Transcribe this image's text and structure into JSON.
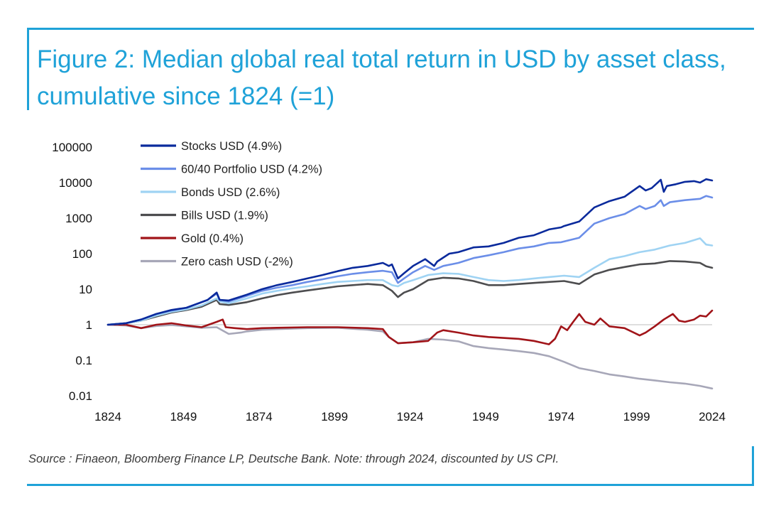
{
  "colors": {
    "accent": "#1fa2d8",
    "stocks": "#0a2a9c",
    "portfolio": "#6b8ee8",
    "bonds": "#9fd3f3",
    "bills": "#4d4d4f",
    "gold": "#a11419",
    "zero_cash": "#a7a7b8",
    "baseline": "#d4d4d4"
  },
  "title": "Figure 2: Median global real total return in USD by asset class, cumulative since 1824 (=1)",
  "source": "Source : Finaeon, Bloomberg Finance LP, Deutsche Bank. Note: through 2024, discounted by US CPI.",
  "chart_data": {
    "type": "line",
    "title": "Figure 2: Median global real total return in USD by asset class, cumulative since 1824 (=1)",
    "xlabel": "",
    "ylabel": "",
    "y_scale": "log",
    "xlim": [
      1824,
      2024
    ],
    "ylim": [
      0.01,
      100000
    ],
    "x_ticks": [
      "1824",
      "1849",
      "1874",
      "1899",
      "1924",
      "1949",
      "1974",
      "1999",
      "2024"
    ],
    "y_ticks": [
      {
        "v": 100000,
        "label": "100000"
      },
      {
        "v": 10000,
        "label": "10000"
      },
      {
        "v": 1000,
        "label": "1000"
      },
      {
        "v": 100,
        "label": "100"
      },
      {
        "v": 10,
        "label": "10"
      },
      {
        "v": 1,
        "label": "1"
      },
      {
        "v": 0.1,
        "label": "0.1"
      },
      {
        "v": 0.01,
        "label": "0.01"
      }
    ],
    "grid": false,
    "baseline": 1,
    "legend_position": "top-left",
    "series": [
      {
        "key": "stocks",
        "name": "Stocks USD (4.9%)",
        "points": [
          [
            1824,
            1
          ],
          [
            1830,
            1.1
          ],
          [
            1835,
            1.4
          ],
          [
            1840,
            2
          ],
          [
            1845,
            2.6
          ],
          [
            1850,
            3
          ],
          [
            1854,
            4
          ],
          [
            1857,
            5
          ],
          [
            1860,
            8
          ],
          [
            1861,
            5
          ],
          [
            1864,
            4.8
          ],
          [
            1870,
            7
          ],
          [
            1875,
            10
          ],
          [
            1880,
            13
          ],
          [
            1885,
            16
          ],
          [
            1890,
            20
          ],
          [
            1895,
            25
          ],
          [
            1900,
            32
          ],
          [
            1905,
            40
          ],
          [
            1910,
            45
          ],
          [
            1915,
            55
          ],
          [
            1917,
            45
          ],
          [
            1918,
            50
          ],
          [
            1920,
            20
          ],
          [
            1922,
            28
          ],
          [
            1925,
            45
          ],
          [
            1929,
            70
          ],
          [
            1932,
            45
          ],
          [
            1933,
            60
          ],
          [
            1937,
            100
          ],
          [
            1940,
            110
          ],
          [
            1945,
            150
          ],
          [
            1950,
            160
          ],
          [
            1955,
            200
          ],
          [
            1960,
            280
          ],
          [
            1965,
            330
          ],
          [
            1970,
            480
          ],
          [
            1974,
            550
          ],
          [
            1975,
            600
          ],
          [
            1980,
            800
          ],
          [
            1985,
            2000
          ],
          [
            1990,
            3000
          ],
          [
            1995,
            4000
          ],
          [
            2000,
            8000
          ],
          [
            2002,
            6000
          ],
          [
            2004,
            7000
          ],
          [
            2007,
            12000
          ],
          [
            2008,
            5500
          ],
          [
            2009,
            8000
          ],
          [
            2012,
            9000
          ],
          [
            2015,
            10500
          ],
          [
            2018,
            11000
          ],
          [
            2020,
            10000
          ],
          [
            2022,
            12500
          ],
          [
            2024,
            11500
          ]
        ]
      },
      {
        "key": "portfolio",
        "name": "60/40 Portfolio USD (4.2%)",
        "points": [
          [
            1824,
            1
          ],
          [
            1830,
            1.1
          ],
          [
            1835,
            1.4
          ],
          [
            1840,
            2
          ],
          [
            1845,
            2.5
          ],
          [
            1850,
            3
          ],
          [
            1854,
            4
          ],
          [
            1857,
            5
          ],
          [
            1860,
            7.5
          ],
          [
            1861,
            5
          ],
          [
            1864,
            4.5
          ],
          [
            1870,
            6.5
          ],
          [
            1875,
            9
          ],
          [
            1880,
            11
          ],
          [
            1885,
            13
          ],
          [
            1890,
            16
          ],
          [
            1895,
            19
          ],
          [
            1900,
            23
          ],
          [
            1905,
            27
          ],
          [
            1910,
            30
          ],
          [
            1915,
            33
          ],
          [
            1918,
            30
          ],
          [
            1920,
            15
          ],
          [
            1922,
            20
          ],
          [
            1925,
            30
          ],
          [
            1929,
            45
          ],
          [
            1932,
            35
          ],
          [
            1935,
            45
          ],
          [
            1940,
            55
          ],
          [
            1945,
            75
          ],
          [
            1950,
            90
          ],
          [
            1955,
            110
          ],
          [
            1960,
            140
          ],
          [
            1965,
            160
          ],
          [
            1970,
            200
          ],
          [
            1974,
            210
          ],
          [
            1980,
            280
          ],
          [
            1985,
            700
          ],
          [
            1990,
            1000
          ],
          [
            1995,
            1300
          ],
          [
            2000,
            2200
          ],
          [
            2002,
            1800
          ],
          [
            2005,
            2200
          ],
          [
            2007,
            3200
          ],
          [
            2008,
            2200
          ],
          [
            2010,
            2800
          ],
          [
            2015,
            3200
          ],
          [
            2020,
            3500
          ],
          [
            2022,
            4200
          ],
          [
            2024,
            3800
          ]
        ]
      },
      {
        "key": "bonds",
        "name": "Bonds USD (2.6%)",
        "points": [
          [
            1824,
            1
          ],
          [
            1830,
            1.1
          ],
          [
            1835,
            1.3
          ],
          [
            1840,
            1.8
          ],
          [
            1845,
            2.3
          ],
          [
            1850,
            2.7
          ],
          [
            1855,
            3.5
          ],
          [
            1860,
            5.5
          ],
          [
            1861,
            4.5
          ],
          [
            1864,
            4
          ],
          [
            1870,
            5.5
          ],
          [
            1875,
            7.5
          ],
          [
            1880,
            9
          ],
          [
            1885,
            10.5
          ],
          [
            1890,
            12
          ],
          [
            1895,
            14
          ],
          [
            1900,
            16
          ],
          [
            1905,
            17
          ],
          [
            1910,
            18
          ],
          [
            1915,
            18
          ],
          [
            1918,
            13
          ],
          [
            1920,
            12
          ],
          [
            1922,
            15
          ],
          [
            1925,
            18
          ],
          [
            1930,
            25
          ],
          [
            1935,
            28
          ],
          [
            1940,
            27
          ],
          [
            1945,
            22
          ],
          [
            1950,
            18
          ],
          [
            1955,
            17
          ],
          [
            1960,
            18
          ],
          [
            1965,
            20
          ],
          [
            1970,
            22
          ],
          [
            1975,
            24
          ],
          [
            1980,
            22
          ],
          [
            1985,
            40
          ],
          [
            1990,
            70
          ],
          [
            1995,
            85
          ],
          [
            2000,
            110
          ],
          [
            2005,
            130
          ],
          [
            2010,
            170
          ],
          [
            2015,
            200
          ],
          [
            2020,
            270
          ],
          [
            2022,
            180
          ],
          [
            2024,
            170
          ]
        ]
      },
      {
        "key": "bills",
        "name": "Bills USD (1.9%)",
        "points": [
          [
            1824,
            1
          ],
          [
            1830,
            1.1
          ],
          [
            1835,
            1.3
          ],
          [
            1840,
            1.7
          ],
          [
            1845,
            2.2
          ],
          [
            1850,
            2.6
          ],
          [
            1855,
            3.2
          ],
          [
            1860,
            5
          ],
          [
            1861,
            3.8
          ],
          [
            1864,
            3.6
          ],
          [
            1870,
            4.3
          ],
          [
            1875,
            5.5
          ],
          [
            1880,
            6.8
          ],
          [
            1885,
            8
          ],
          [
            1890,
            9.2
          ],
          [
            1895,
            10.5
          ],
          [
            1900,
            12
          ],
          [
            1905,
            13
          ],
          [
            1910,
            14
          ],
          [
            1915,
            13
          ],
          [
            1918,
            9
          ],
          [
            1920,
            6
          ],
          [
            1922,
            8
          ],
          [
            1925,
            10
          ],
          [
            1930,
            18
          ],
          [
            1935,
            21
          ],
          [
            1940,
            20
          ],
          [
            1945,
            17
          ],
          [
            1950,
            13
          ],
          [
            1955,
            13
          ],
          [
            1960,
            14
          ],
          [
            1965,
            15
          ],
          [
            1970,
            16
          ],
          [
            1975,
            17
          ],
          [
            1980,
            14
          ],
          [
            1985,
            26
          ],
          [
            1990,
            35
          ],
          [
            1995,
            42
          ],
          [
            2000,
            50
          ],
          [
            2005,
            53
          ],
          [
            2010,
            62
          ],
          [
            2015,
            60
          ],
          [
            2020,
            55
          ],
          [
            2022,
            44
          ],
          [
            2024,
            40
          ]
        ]
      },
      {
        "key": "gold",
        "name": "Gold (0.4%)",
        "points": [
          [
            1824,
            1
          ],
          [
            1830,
            1
          ],
          [
            1835,
            0.8
          ],
          [
            1840,
            1
          ],
          [
            1845,
            1.1
          ],
          [
            1850,
            0.95
          ],
          [
            1855,
            0.85
          ],
          [
            1860,
            1.2
          ],
          [
            1862,
            1.4
          ],
          [
            1863,
            0.85
          ],
          [
            1866,
            0.8
          ],
          [
            1870,
            0.75
          ],
          [
            1875,
            0.8
          ],
          [
            1880,
            0.82
          ],
          [
            1890,
            0.85
          ],
          [
            1900,
            0.85
          ],
          [
            1910,
            0.8
          ],
          [
            1915,
            0.75
          ],
          [
            1917,
            0.45
          ],
          [
            1920,
            0.3
          ],
          [
            1925,
            0.32
          ],
          [
            1930,
            0.35
          ],
          [
            1933,
            0.6
          ],
          [
            1935,
            0.7
          ],
          [
            1940,
            0.6
          ],
          [
            1945,
            0.5
          ],
          [
            1950,
            0.45
          ],
          [
            1960,
            0.4
          ],
          [
            1965,
            0.35
          ],
          [
            1970,
            0.28
          ],
          [
            1972,
            0.4
          ],
          [
            1974,
            0.9
          ],
          [
            1976,
            0.7
          ],
          [
            1978,
            1.2
          ],
          [
            1980,
            2
          ],
          [
            1982,
            1.2
          ],
          [
            1985,
            1
          ],
          [
            1987,
            1.5
          ],
          [
            1990,
            0.9
          ],
          [
            1995,
            0.8
          ],
          [
            2000,
            0.5
          ],
          [
            2002,
            0.6
          ],
          [
            2005,
            0.9
          ],
          [
            2008,
            1.4
          ],
          [
            2011,
            2
          ],
          [
            2013,
            1.3
          ],
          [
            2015,
            1.2
          ],
          [
            2018,
            1.4
          ],
          [
            2020,
            1.8
          ],
          [
            2022,
            1.7
          ],
          [
            2024,
            2.5
          ]
        ]
      },
      {
        "key": "zero_cash",
        "name": "Zero cash USD (-2%)",
        "points": [
          [
            1824,
            1
          ],
          [
            1830,
            0.95
          ],
          [
            1835,
            0.8
          ],
          [
            1840,
            0.92
          ],
          [
            1845,
            0.98
          ],
          [
            1850,
            0.9
          ],
          [
            1855,
            0.82
          ],
          [
            1860,
            0.85
          ],
          [
            1864,
            0.55
          ],
          [
            1868,
            0.6
          ],
          [
            1870,
            0.65
          ],
          [
            1875,
            0.72
          ],
          [
            1880,
            0.75
          ],
          [
            1890,
            0.8
          ],
          [
            1900,
            0.82
          ],
          [
            1910,
            0.72
          ],
          [
            1915,
            0.65
          ],
          [
            1917,
            0.45
          ],
          [
            1920,
            0.3
          ],
          [
            1925,
            0.32
          ],
          [
            1930,
            0.4
          ],
          [
            1935,
            0.38
          ],
          [
            1940,
            0.34
          ],
          [
            1945,
            0.25
          ],
          [
            1950,
            0.22
          ],
          [
            1955,
            0.2
          ],
          [
            1960,
            0.18
          ],
          [
            1965,
            0.16
          ],
          [
            1970,
            0.13
          ],
          [
            1975,
            0.09
          ],
          [
            1980,
            0.06
          ],
          [
            1985,
            0.05
          ],
          [
            1990,
            0.04
          ],
          [
            1995,
            0.035
          ],
          [
            2000,
            0.03
          ],
          [
            2005,
            0.027
          ],
          [
            2010,
            0.024
          ],
          [
            2015,
            0.022
          ],
          [
            2020,
            0.019
          ],
          [
            2024,
            0.016
          ]
        ]
      }
    ]
  }
}
